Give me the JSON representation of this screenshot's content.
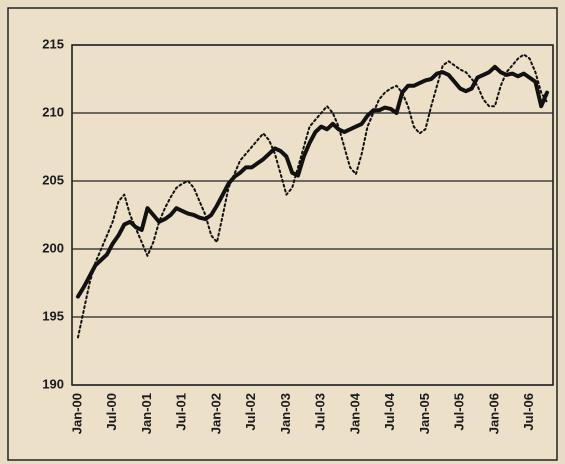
{
  "chart_data": {
    "type": "line",
    "categories": [
      "Jan-00",
      null,
      null,
      null,
      null,
      null,
      "Jul-00",
      null,
      null,
      null,
      null,
      null,
      "Jan-01",
      null,
      null,
      null,
      null,
      null,
      "Jul-01",
      null,
      null,
      null,
      null,
      null,
      "Jan-02",
      null,
      null,
      null,
      null,
      null,
      "Jul-02",
      null,
      null,
      null,
      null,
      null,
      "Jan-03",
      null,
      null,
      null,
      null,
      null,
      "Jul-03",
      null,
      null,
      null,
      null,
      null,
      "Jan-04",
      null,
      null,
      null,
      null,
      null,
      "Jul-04",
      null,
      null,
      null,
      null,
      null,
      "Jan-05",
      null,
      null,
      null,
      null,
      null,
      "Jul-05",
      null,
      null,
      null,
      null,
      null,
      "Jan-06",
      null,
      null,
      null,
      null,
      null,
      "Jul-06",
      null,
      null,
      null
    ],
    "series": [
      {
        "color": "#111111",
        "style": "solid",
        "values": [
          196.5,
          197.2,
          198.0,
          198.8,
          199.2,
          199.6,
          200.4,
          201.0,
          201.8,
          202.0,
          201.6,
          201.4,
          203.0,
          202.5,
          202.0,
          202.2,
          202.5,
          203.0,
          202.8,
          202.6,
          202.5,
          202.3,
          202.2,
          202.5,
          203.2,
          204.0,
          204.8,
          205.3,
          205.6,
          206.0,
          206.0,
          206.3,
          206.6,
          207.0,
          207.4,
          207.2,
          206.8,
          205.6,
          205.4,
          206.8,
          207.8,
          208.6,
          209.0,
          208.8,
          209.2,
          208.8,
          208.6,
          208.8,
          209.0,
          209.2,
          209.8,
          210.2,
          210.2,
          210.4,
          210.3,
          210.0,
          211.5,
          212.0,
          212.0,
          212.2,
          212.4,
          212.5,
          212.9,
          213.0,
          212.8,
          212.3,
          211.8,
          211.6,
          211.8,
          212.6,
          212.8,
          213.0,
          213.4,
          213.0,
          212.8,
          212.9,
          212.7,
          212.9,
          212.6,
          212.3,
          210.5,
          211.5
        ]
      },
      {
        "color": "#111111",
        "style": "dotted",
        "values": [
          193.5,
          195.5,
          197.5,
          199.0,
          200.0,
          201.0,
          202.0,
          203.5,
          204.0,
          202.5,
          201.5,
          200.5,
          199.5,
          200.5,
          202.0,
          203.0,
          203.8,
          204.5,
          204.8,
          205.0,
          204.5,
          203.5,
          202.5,
          201.0,
          200.5,
          202.5,
          204.5,
          205.5,
          206.5,
          207.0,
          207.5,
          208.0,
          208.5,
          208.0,
          207.0,
          205.5,
          204.0,
          204.5,
          206.0,
          207.5,
          209.0,
          209.5,
          210.0,
          210.5,
          210.0,
          209.0,
          207.5,
          206.0,
          205.5,
          207.0,
          209.0,
          210.0,
          211.0,
          211.5,
          211.8,
          212.0,
          211.5,
          210.5,
          209.0,
          208.5,
          208.8,
          210.5,
          212.0,
          213.5,
          213.8,
          213.5,
          213.2,
          213.0,
          212.5,
          212.0,
          211.0,
          210.5,
          210.5,
          212.0,
          213.0,
          213.5,
          214.0,
          214.3,
          214.0,
          213.0,
          211.5,
          210.8
        ]
      }
    ],
    "ylim": [
      190,
      215
    ],
    "yticks": [
      190,
      195,
      200,
      205,
      210,
      215
    ],
    "grid": true
  }
}
